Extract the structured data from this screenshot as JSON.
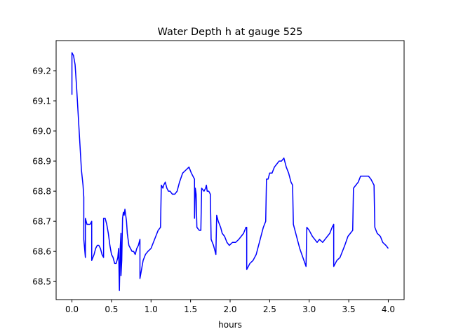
{
  "chart_data": {
    "type": "line",
    "title": "Water Depth h at gauge 525",
    "xlabel": "hours",
    "ylabel": "",
    "xlim": [
      -0.2,
      4.2
    ],
    "ylim": [
      68.44,
      69.3
    ],
    "xticks": [
      0.0,
      0.5,
      1.0,
      1.5,
      2.0,
      2.5,
      3.0,
      3.5,
      4.0
    ],
    "xtick_labels": [
      "0.0",
      "0.5",
      "1.0",
      "1.5",
      "2.0",
      "2.5",
      "3.0",
      "3.5",
      "4.0"
    ],
    "yticks": [
      68.5,
      68.6,
      68.7,
      68.8,
      68.9,
      69.0,
      69.1,
      69.2
    ],
    "ytick_labels": [
      "68.5",
      "68.6",
      "68.7",
      "68.8",
      "68.9",
      "69.0",
      "69.1",
      "69.2"
    ],
    "grid": false,
    "legend": "none",
    "colors": {
      "line": "#0000ff",
      "axes": "#000000",
      "background": "#ffffff"
    },
    "series": [
      {
        "values": [
          [
            0.0,
            69.12
          ],
          [
            0.0,
            69.26
          ],
          [
            0.02,
            69.25
          ],
          [
            0.04,
            69.22
          ],
          [
            0.06,
            69.14
          ],
          [
            0.08,
            69.05
          ],
          [
            0.1,
            68.96
          ],
          [
            0.12,
            68.87
          ],
          [
            0.14,
            68.82
          ],
          [
            0.15,
            68.78
          ],
          [
            0.15,
            68.64
          ],
          [
            0.17,
            68.58
          ],
          [
            0.17,
            68.71
          ],
          [
            0.19,
            68.69
          ],
          [
            0.21,
            68.69
          ],
          [
            0.23,
            68.69
          ],
          [
            0.25,
            68.7
          ],
          [
            0.25,
            68.57
          ],
          [
            0.28,
            68.59
          ],
          [
            0.3,
            68.61
          ],
          [
            0.32,
            68.62
          ],
          [
            0.34,
            68.62
          ],
          [
            0.36,
            68.61
          ],
          [
            0.38,
            68.59
          ],
          [
            0.4,
            68.58
          ],
          [
            0.4,
            68.71
          ],
          [
            0.42,
            68.71
          ],
          [
            0.44,
            68.69
          ],
          [
            0.46,
            68.66
          ],
          [
            0.48,
            68.62
          ],
          [
            0.5,
            68.59
          ],
          [
            0.52,
            68.58
          ],
          [
            0.54,
            68.56
          ],
          [
            0.56,
            68.56
          ],
          [
            0.58,
            68.58
          ],
          [
            0.59,
            68.61
          ],
          [
            0.6,
            68.47
          ],
          [
            0.61,
            68.61
          ],
          [
            0.62,
            68.66
          ],
          [
            0.62,
            68.52
          ],
          [
            0.63,
            68.57
          ],
          [
            0.64,
            68.71
          ],
          [
            0.65,
            68.73
          ],
          [
            0.66,
            68.72
          ],
          [
            0.67,
            68.74
          ],
          [
            0.68,
            68.72
          ],
          [
            0.69,
            68.7
          ],
          [
            0.7,
            68.66
          ],
          [
            0.72,
            68.62
          ],
          [
            0.74,
            68.61
          ],
          [
            0.76,
            68.6
          ],
          [
            0.78,
            68.6
          ],
          [
            0.8,
            68.59
          ],
          [
            0.82,
            68.61
          ],
          [
            0.84,
            68.62
          ],
          [
            0.86,
            68.64
          ],
          [
            0.86,
            68.51
          ],
          [
            0.88,
            68.54
          ],
          [
            0.9,
            68.57
          ],
          [
            0.93,
            68.59
          ],
          [
            0.96,
            68.6
          ],
          [
            1.0,
            68.61
          ],
          [
            1.03,
            68.63
          ],
          [
            1.06,
            68.65
          ],
          [
            1.09,
            68.67
          ],
          [
            1.12,
            68.68
          ],
          [
            1.13,
            68.82
          ],
          [
            1.15,
            68.81
          ],
          [
            1.16,
            68.82
          ],
          [
            1.18,
            68.83
          ],
          [
            1.2,
            68.81
          ],
          [
            1.22,
            68.8
          ],
          [
            1.24,
            68.8
          ],
          [
            1.27,
            68.79
          ],
          [
            1.3,
            68.79
          ],
          [
            1.33,
            68.8
          ],
          [
            1.36,
            68.83
          ],
          [
            1.4,
            68.86
          ],
          [
            1.44,
            68.87
          ],
          [
            1.48,
            68.88
          ],
          [
            1.51,
            68.86
          ],
          [
            1.53,
            68.85
          ],
          [
            1.55,
            68.84
          ],
          [
            1.55,
            68.71
          ],
          [
            1.56,
            68.81
          ],
          [
            1.57,
            68.79
          ],
          [
            1.58,
            68.68
          ],
          [
            1.61,
            68.67
          ],
          [
            1.63,
            68.67
          ],
          [
            1.64,
            68.81
          ],
          [
            1.67,
            68.8
          ],
          [
            1.69,
            68.81
          ],
          [
            1.7,
            68.82
          ],
          [
            1.71,
            68.8
          ],
          [
            1.73,
            68.8
          ],
          [
            1.75,
            68.79
          ],
          [
            1.76,
            68.64
          ],
          [
            1.79,
            68.62
          ],
          [
            1.82,
            68.59
          ],
          [
            1.83,
            68.72
          ],
          [
            1.85,
            68.7
          ],
          [
            1.88,
            68.68
          ],
          [
            1.9,
            68.66
          ],
          [
            1.93,
            68.65
          ],
          [
            1.96,
            68.63
          ],
          [
            1.99,
            68.62
          ],
          [
            2.03,
            68.63
          ],
          [
            2.07,
            68.63
          ],
          [
            2.11,
            68.64
          ],
          [
            2.14,
            68.65
          ],
          [
            2.17,
            68.66
          ],
          [
            2.2,
            68.68
          ],
          [
            2.21,
            68.68
          ],
          [
            2.21,
            68.54
          ],
          [
            2.25,
            68.56
          ],
          [
            2.29,
            68.57
          ],
          [
            2.33,
            68.59
          ],
          [
            2.36,
            68.62
          ],
          [
            2.39,
            68.65
          ],
          [
            2.42,
            68.68
          ],
          [
            2.45,
            68.7
          ],
          [
            2.46,
            68.84
          ],
          [
            2.48,
            68.84
          ],
          [
            2.5,
            68.86
          ],
          [
            2.53,
            68.86
          ],
          [
            2.56,
            68.88
          ],
          [
            2.59,
            68.89
          ],
          [
            2.62,
            68.9
          ],
          [
            2.65,
            68.9
          ],
          [
            2.68,
            68.91
          ],
          [
            2.71,
            68.88
          ],
          [
            2.74,
            68.86
          ],
          [
            2.77,
            68.83
          ],
          [
            2.79,
            68.82
          ],
          [
            2.8,
            68.69
          ],
          [
            2.84,
            68.65
          ],
          [
            2.88,
            68.61
          ],
          [
            2.92,
            68.58
          ],
          [
            2.96,
            68.55
          ],
          [
            2.97,
            68.68
          ],
          [
            3.0,
            68.67
          ],
          [
            3.04,
            68.65
          ],
          [
            3.07,
            68.64
          ],
          [
            3.1,
            68.63
          ],
          [
            3.13,
            68.64
          ],
          [
            3.17,
            68.63
          ],
          [
            3.2,
            68.64
          ],
          [
            3.23,
            68.65
          ],
          [
            3.26,
            68.66
          ],
          [
            3.29,
            68.68
          ],
          [
            3.31,
            68.69
          ],
          [
            3.31,
            68.55
          ],
          [
            3.35,
            68.57
          ],
          [
            3.39,
            68.58
          ],
          [
            3.42,
            68.6
          ],
          [
            3.45,
            68.62
          ],
          [
            3.49,
            68.65
          ],
          [
            3.52,
            68.66
          ],
          [
            3.55,
            68.67
          ],
          [
            3.56,
            68.81
          ],
          [
            3.59,
            68.82
          ],
          [
            3.62,
            68.83
          ],
          [
            3.65,
            68.85
          ],
          [
            3.7,
            68.85
          ],
          [
            3.75,
            68.85
          ],
          [
            3.78,
            68.84
          ],
          [
            3.82,
            68.82
          ],
          [
            3.83,
            68.68
          ],
          [
            3.86,
            68.66
          ],
          [
            3.9,
            68.65
          ],
          [
            3.93,
            68.63
          ],
          [
            3.97,
            68.62
          ],
          [
            4.0,
            68.61
          ]
        ]
      }
    ]
  }
}
